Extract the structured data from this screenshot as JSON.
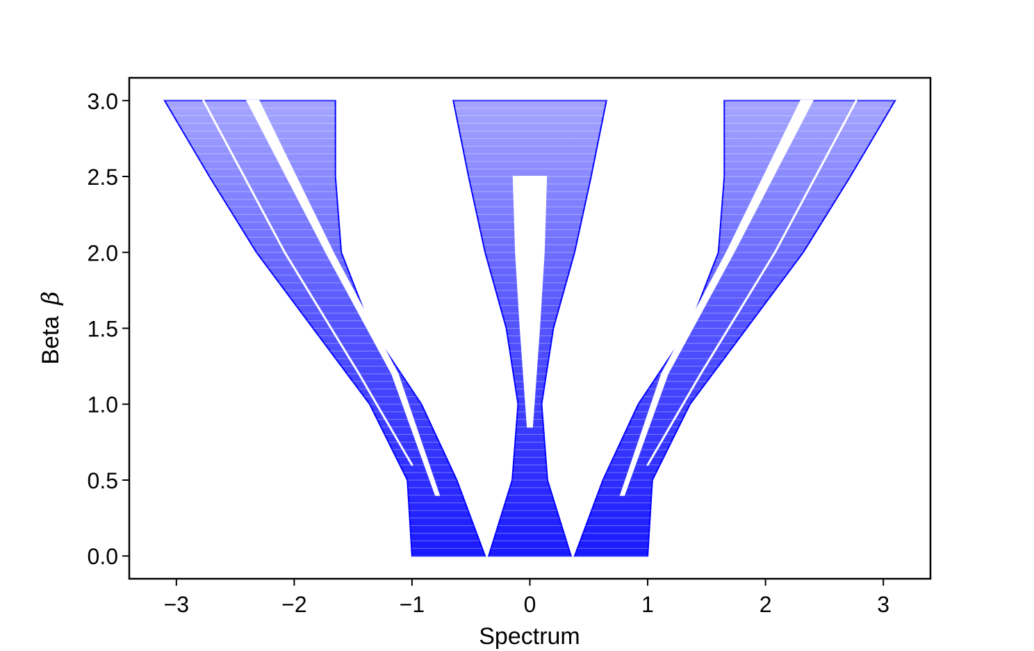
{
  "chart_data": {
    "type": "area",
    "xlabel": "Spectrum",
    "ylabel": {
      "text": "Beta",
      "symbol": "β"
    },
    "xlim": [
      -3.4,
      3.4
    ],
    "ylim": [
      -0.15,
      3.15
    ],
    "xticks": [
      -3,
      -2,
      -1,
      0,
      1,
      2,
      3
    ],
    "xtick_labels": [
      "−3",
      "−2",
      "−1",
      "0",
      "1",
      "2",
      "3"
    ],
    "yticks": [
      0.0,
      0.5,
      1.0,
      1.5,
      2.0,
      2.5,
      3.0
    ],
    "ytick_labels": [
      "0.0",
      "0.5",
      "1.0",
      "1.5",
      "2.0",
      "2.5",
      "3.0"
    ],
    "grid": false,
    "color": "#0000ff",
    "bands": [
      {
        "name": "outer-left",
        "left": [
          [
            0.0,
            -1.0
          ],
          [
            0.5,
            -1.04
          ],
          [
            1.0,
            -1.36
          ],
          [
            1.5,
            -1.84
          ],
          [
            2.0,
            -2.32
          ],
          [
            2.5,
            -2.72
          ],
          [
            3.0,
            -3.1
          ]
        ],
        "right": [
          [
            0.0,
            -0.38
          ],
          [
            0.5,
            -0.62
          ],
          [
            1.0,
            -0.92
          ],
          [
            1.5,
            -1.35
          ],
          [
            2.0,
            -1.6
          ],
          [
            2.5,
            -1.65
          ],
          [
            3.0,
            -1.65
          ]
        ]
      },
      {
        "name": "center",
        "left": [
          [
            0.0,
            -0.35
          ],
          [
            0.5,
            -0.15
          ],
          [
            1.0,
            -0.1
          ],
          [
            1.5,
            -0.2
          ],
          [
            2.0,
            -0.38
          ],
          [
            2.5,
            -0.52
          ],
          [
            3.0,
            -0.65
          ]
        ],
        "right": [
          [
            0.0,
            0.35
          ],
          [
            0.5,
            0.15
          ],
          [
            1.0,
            0.1
          ],
          [
            1.5,
            0.2
          ],
          [
            2.0,
            0.38
          ],
          [
            2.5,
            0.52
          ],
          [
            3.0,
            0.65
          ]
        ]
      },
      {
        "name": "outer-right",
        "left": [
          [
            0.0,
            0.38
          ],
          [
            0.5,
            0.62
          ],
          [
            1.0,
            0.92
          ],
          [
            1.5,
            1.35
          ],
          [
            2.0,
            1.6
          ],
          [
            2.5,
            1.65
          ],
          [
            3.0,
            1.65
          ]
        ],
        "right": [
          [
            0.0,
            1.0
          ],
          [
            0.5,
            1.04
          ],
          [
            1.0,
            1.36
          ],
          [
            1.5,
            1.84
          ],
          [
            2.0,
            2.32
          ],
          [
            2.5,
            2.72
          ],
          [
            3.0,
            3.1
          ]
        ]
      }
    ],
    "gaps": [
      {
        "name": "gap-left",
        "points": [
          [
            3.0,
            -2.4
          ],
          [
            2.0,
            -1.73
          ],
          [
            1.2,
            -1.17
          ],
          [
            0.4,
            -0.8
          ],
          [
            3.0,
            -2.3
          ],
          [
            2.0,
            -1.67
          ],
          [
            1.2,
            -1.12
          ],
          [
            0.4,
            -0.77
          ]
        ]
      },
      {
        "name": "gap-left-inner",
        "points": [
          [
            3.0,
            -2.77
          ],
          [
            2.0,
            -2.08
          ],
          [
            1.2,
            -1.45
          ],
          [
            0.6,
            -1.0
          ]
        ]
      },
      {
        "name": "gap-center",
        "points": [
          [
            0.85,
            -0.02
          ],
          [
            1.5,
            -0.08
          ],
          [
            2.0,
            -0.12
          ],
          [
            2.5,
            -0.14
          ],
          [
            0.85,
            0.02
          ],
          [
            1.5,
            0.08
          ],
          [
            2.0,
            0.12
          ],
          [
            2.5,
            0.14
          ]
        ]
      },
      {
        "name": "gap-right",
        "points": [
          [
            3.0,
            2.4
          ],
          [
            2.0,
            1.73
          ],
          [
            1.2,
            1.17
          ],
          [
            0.4,
            0.8
          ],
          [
            3.0,
            2.3
          ],
          [
            2.0,
            1.67
          ],
          [
            1.2,
            1.12
          ],
          [
            0.4,
            0.77
          ]
        ]
      },
      {
        "name": "gap-right-inner",
        "points": [
          [
            3.0,
            2.77
          ],
          [
            2.0,
            2.08
          ],
          [
            1.2,
            1.45
          ],
          [
            0.6,
            1.0
          ]
        ]
      }
    ]
  }
}
